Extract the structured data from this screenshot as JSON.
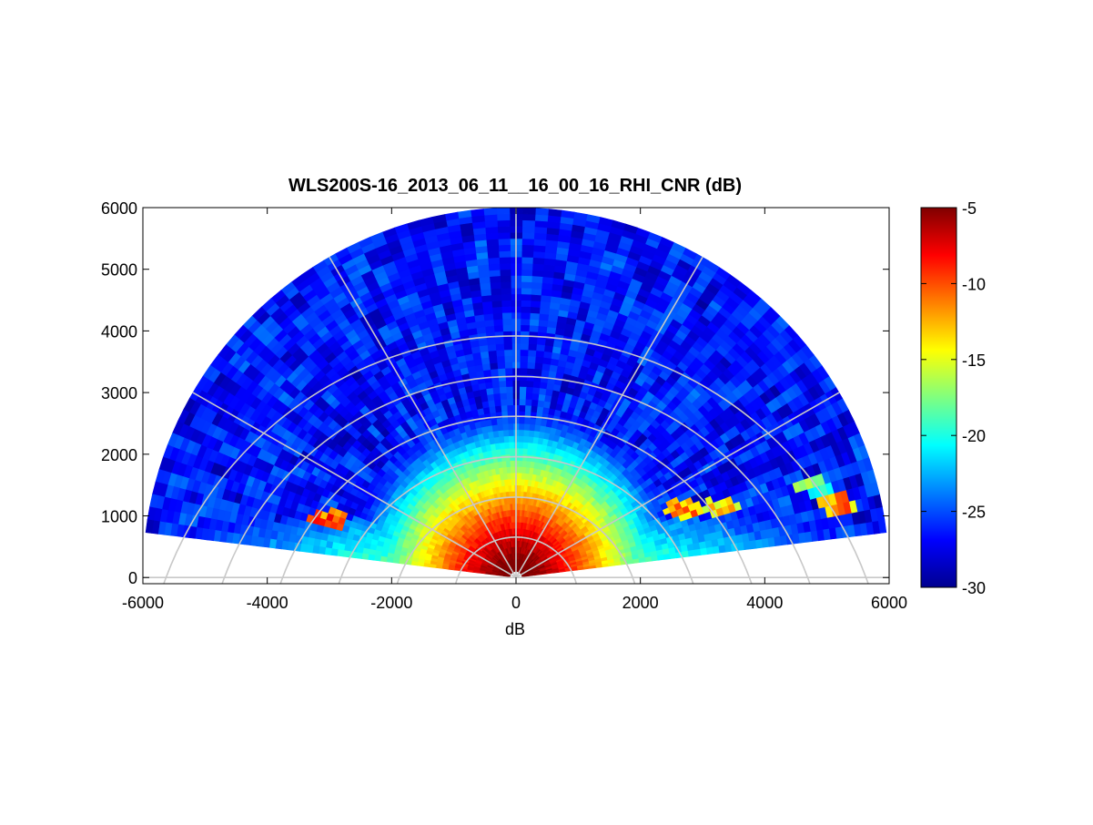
{
  "chart_data": {
    "type": "heatmap",
    "subtype": "polar-rhi-scan",
    "title": "WLS200S-16_2013_06_11__16_00_16_RHI_CNR (dB)",
    "xlabel": "dB",
    "ylabel": "",
    "xlim": [
      -6000,
      6000
    ],
    "ylim": [
      -100,
      6000
    ],
    "x_ticks": [
      "-6000",
      "-4000",
      "-2000",
      "0",
      "2000",
      "4000",
      "6000"
    ],
    "y_ticks": [
      "0",
      "1000",
      "2000",
      "3000",
      "4000",
      "5000",
      "6000"
    ],
    "x_tick_values": [
      -6000,
      -4000,
      -2000,
      0,
      2000,
      4000,
      6000
    ],
    "y_tick_values": [
      0,
      1000,
      2000,
      3000,
      4000,
      5000,
      6000
    ],
    "polar_grid": {
      "ring_radii": [
        1000,
        2000,
        3000,
        4000,
        5000,
        6000
      ],
      "spoke_angles_deg": [
        0,
        30,
        60,
        90,
        120,
        150,
        180
      ]
    },
    "scan": {
      "elevation_min_deg": 7,
      "elevation_max_deg": 173,
      "max_range": 5950,
      "beam_step_deg": 2,
      "gate_length": 100
    },
    "colorbar": {
      "colormap": "jet",
      "clim": [
        -30,
        -5
      ],
      "ticks": [
        "-5",
        "-10",
        "-15",
        "-20",
        "-25",
        "-30"
      ],
      "tick_values": [
        -5,
        -10,
        -15,
        -20,
        -25,
        -30
      ]
    },
    "cnr_structure": {
      "near_field_peak_db": -6,
      "near_field_radius": 900,
      "far_field_background_db": -26.5,
      "aerosol_layer_top": 950,
      "elevated_features": [
        {
          "x": 2700,
          "y": 1120,
          "db": -12
        },
        {
          "x": 3300,
          "y": 1130,
          "db": -14
        },
        {
          "x": 5150,
          "y": 1200,
          "db": -12
        },
        {
          "x": -3000,
          "y": 950,
          "db": -10
        },
        {
          "x": 4750,
          "y": 1500,
          "db": -19
        }
      ]
    }
  }
}
